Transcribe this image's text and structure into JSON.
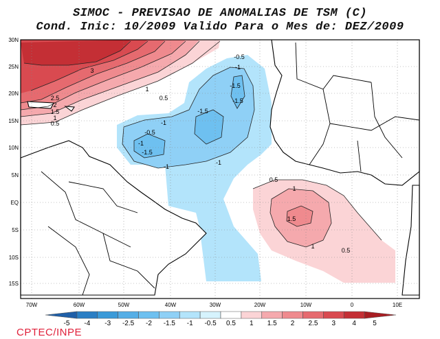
{
  "header": {
    "title_line1": "SIMOC - PREVISAO DE ANOMALIAS DE TSM (C)",
    "title_line2": "Cond. Inic: 10/2009   Valido Para o Mes de: DEZ/2009"
  },
  "axes": {
    "lat_labels": [
      "30N",
      "25N",
      "20N",
      "15N",
      "10N",
      "5N",
      "EQ",
      "5S",
      "10S",
      "15S"
    ],
    "lon_labels": [
      "70W",
      "60W",
      "50W",
      "40W",
      "30W",
      "20W",
      "10W",
      "0",
      "10E"
    ]
  },
  "contour_labels": [
    {
      "text": "3"
    },
    {
      "text": "2.5"
    },
    {
      "text": "2"
    },
    {
      "text": "1.5"
    },
    {
      "text": "1"
    },
    {
      "text": "0.5"
    },
    {
      "text": "1"
    },
    {
      "text": "0.5"
    },
    {
      "text": "-0.5"
    },
    {
      "text": "-1"
    },
    {
      "text": "-1.5"
    },
    {
      "text": "-1.5"
    },
    {
      "text": "-1.5"
    },
    {
      "text": "-1"
    },
    {
      "text": "-1"
    },
    {
      "text": "-1"
    },
    {
      "text": "-0.5"
    },
    {
      "text": "-1.5"
    },
    {
      "text": "-1"
    },
    {
      "text": "0.5"
    },
    {
      "text": "1"
    },
    {
      "text": "1.5"
    },
    {
      "text": "1"
    },
    {
      "text": "0.5"
    }
  ],
  "colorbar": {
    "labels": [
      "-5",
      "-4",
      "-3",
      "-2.5",
      "-2",
      "-1.5",
      "-1",
      "-0.5",
      "0.5",
      "1",
      "1.5",
      "2",
      "2.5",
      "3",
      "4",
      "5"
    ],
    "colors": [
      "#1f5fa8",
      "#2a7fc4",
      "#3a9ad8",
      "#55aee6",
      "#6ec0f0",
      "#8fd0f6",
      "#b3e4fb",
      "#d6f3fd",
      "#ffffff",
      "#fbd4d6",
      "#f5a9ad",
      "#ef8a8e",
      "#e66a6f",
      "#d94a50",
      "#c42f35",
      "#a81d22"
    ]
  },
  "footer": {
    "credit": "CPTEC/INPE"
  }
}
